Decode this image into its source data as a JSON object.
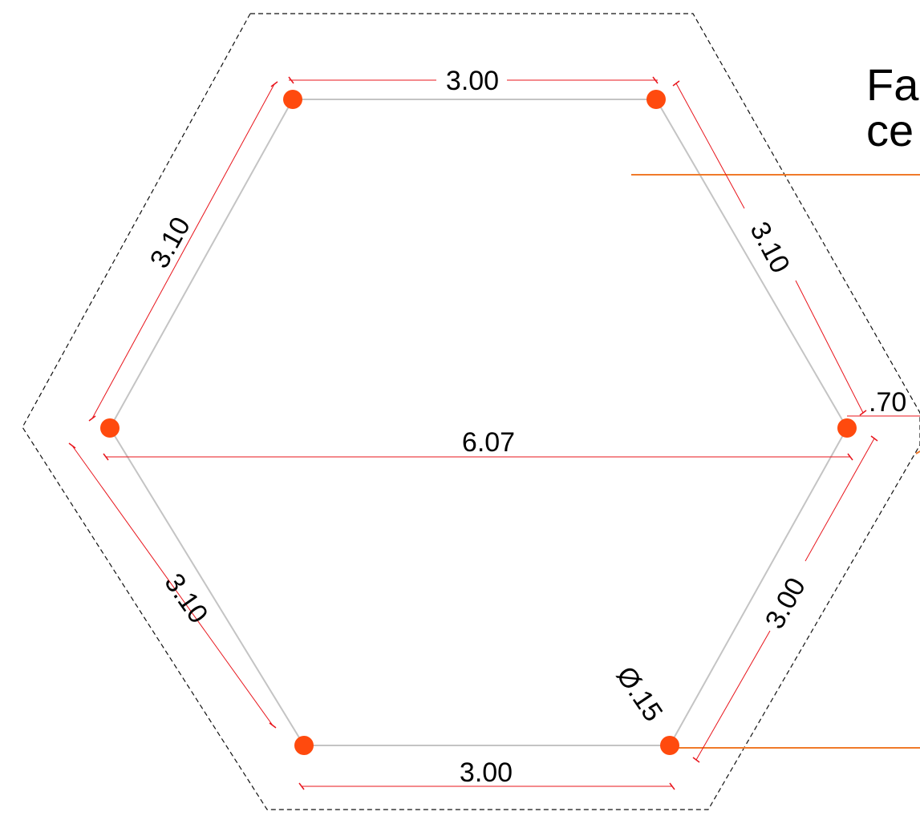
{
  "title_lines": [
    "Fa",
    "ce"
  ],
  "dimensions": {
    "top": "3.00",
    "top_left": "3.10",
    "top_right": "3.10",
    "middle": "6.07",
    "bottom_left": "3.10",
    "bottom_right": "3.00",
    "bottom": "3.00",
    "offset": ".70",
    "diameter": "Ø.15"
  },
  "colors": {
    "node": "#ff4a0e",
    "dimension": "#e8141b",
    "leader": "#f07a2a",
    "hex_line": "#c4c4c4",
    "outline": "#111111"
  }
}
